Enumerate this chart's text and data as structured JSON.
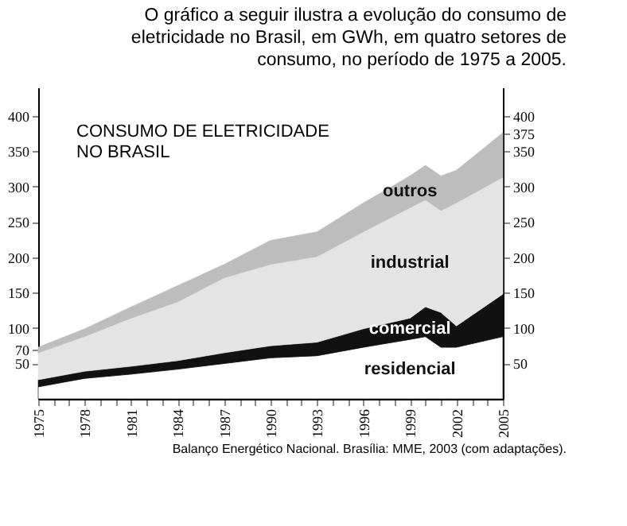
{
  "chart_data": {
    "type": "area",
    "stacked": true,
    "title": "CONSUMO DE ELETRICIDADE NO BRASIL",
    "annotations": [
      "O gráfico a seguir ilustra a evolução do consumo de eletricidade no Brasil, em GWh, em quatro setores de consumo, no período de 1975 a 2005.",
      "Balanço Energético Nacional. Brasília: MME, 2003 (com adaptações)."
    ],
    "x": [
      1975,
      1978,
      1981,
      1984,
      1987,
      1990,
      1993,
      1996,
      1999,
      2000,
      2001,
      2002,
      2005
    ],
    "series": [
      {
        "name": "residencial",
        "color": "#ffffff",
        "values": [
          17,
          29,
          35,
          42,
          50,
          58,
          61,
          73,
          84,
          88,
          73,
          73,
          88
        ]
      },
      {
        "name": "comercial",
        "color": "#111111",
        "values": [
          10,
          10,
          11,
          12,
          15,
          17,
          19,
          26,
          30,
          42,
          49,
          30,
          60
        ]
      },
      {
        "name": "industrial",
        "color": "#e4e4e4",
        "values": [
          38,
          49,
          68,
          83,
          106,
          115,
          121,
          137,
          156,
          151,
          144,
          174,
          165
        ]
      },
      {
        "name": "outros",
        "color": "#bdbdbd",
        "values": [
          8,
          11,
          16,
          23,
          19,
          34,
          35,
          41,
          45,
          49,
          49,
          46,
          63
        ]
      }
    ],
    "xlim": [
      1975,
      2005
    ],
    "xticks": [
      1975,
      {
        "value": 1976,
        "label": null
      },
      {
        "value": 1977,
        "label": null
      },
      1978,
      {
        "value": 1979,
        "label": null
      },
      {
        "value": 1980,
        "label": null
      },
      1981,
      {
        "value": 1982,
        "label": null
      },
      {
        "value": 1983,
        "label": null
      },
      1984,
      {
        "value": 1985,
        "label": null
      },
      {
        "value": 1986,
        "label": null
      },
      1987,
      {
        "value": 1988,
        "label": null
      },
      {
        "value": 1989,
        "label": null
      },
      1990,
      {
        "value": 1991,
        "label": null
      },
      {
        "value": 1992,
        "label": null
      },
      1993,
      {
        "value": 1994,
        "label": null
      },
      {
        "value": 1995,
        "label": null
      },
      1996,
      {
        "value": 1997,
        "label": null
      },
      {
        "value": 1998,
        "label": null
      },
      1999,
      {
        "value": 2000,
        "label": null
      },
      {
        "value": 2001,
        "label": null
      },
      2002,
      {
        "value": 2003,
        "label": null
      },
      {
        "value": 2004,
        "label": null
      },
      2005
    ],
    "ylim": [
      0,
      440
    ],
    "yticks": [
      50,
      70,
      100,
      150,
      200,
      250,
      300,
      350,
      400
    ],
    "y2lim": [
      0,
      440
    ],
    "y2ticks": [
      50,
      100,
      150,
      200,
      250,
      300,
      350,
      375,
      400
    ],
    "grid": false
  }
}
